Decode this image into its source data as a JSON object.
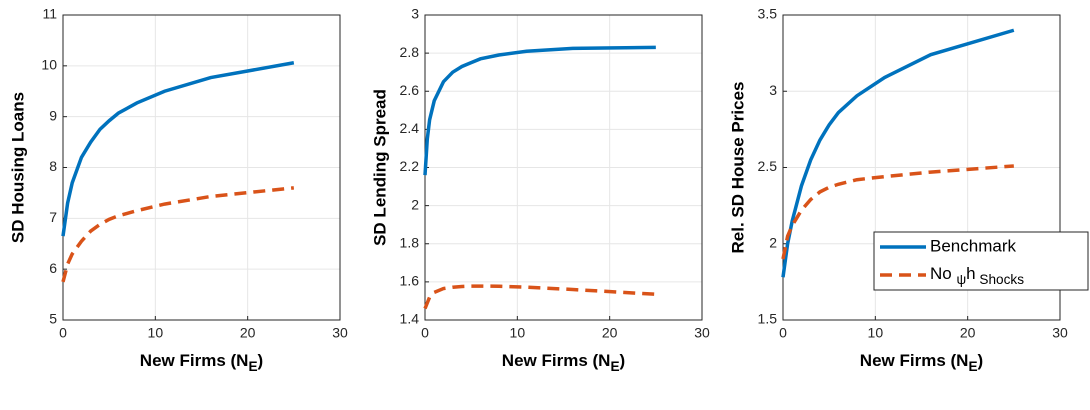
{
  "chart_data": [
    {
      "type": "line",
      "ylabel": "SD Housing Loans",
      "xlabel": [
        "New Firms (N",
        "E",
        ")"
      ],
      "x": [
        0,
        0.5,
        1,
        2,
        3,
        4,
        5,
        6,
        8,
        11,
        16,
        25
      ],
      "xlim": [
        0,
        30
      ],
      "xticks": [
        0,
        10,
        20,
        30
      ],
      "ylim": [
        5,
        11
      ],
      "yticks": [
        5,
        6,
        7,
        8,
        9,
        10,
        11
      ],
      "grid": true,
      "series": [
        {
          "name": "Benchmark",
          "color": "#0072bd",
          "dash": false,
          "values": [
            6.65,
            7.3,
            7.7,
            8.2,
            8.5,
            8.75,
            8.92,
            9.07,
            9.27,
            9.5,
            9.77,
            10.06
          ]
        },
        {
          "name": [
            "No ",
            "ψ",
            "h",
            " Shocks"
          ],
          "color": "#d95319",
          "dash": true,
          "values": [
            5.75,
            6.1,
            6.3,
            6.55,
            6.75,
            6.88,
            6.98,
            7.05,
            7.15,
            7.28,
            7.43,
            7.6
          ]
        }
      ]
    },
    {
      "type": "line",
      "ylabel": "SD Lending Spread",
      "xlabel": [
        "New Firms (N",
        "E",
        ")"
      ],
      "x": [
        0,
        0.25,
        0.5,
        1,
        2,
        3,
        4,
        5,
        6,
        8,
        11,
        16,
        25
      ],
      "xlim": [
        0,
        30
      ],
      "xticks": [
        0,
        10,
        20,
        30
      ],
      "ylim": [
        1.4,
        3
      ],
      "yticks": [
        1.4,
        1.6,
        1.8,
        2,
        2.2,
        2.4,
        2.6,
        2.8,
        3
      ],
      "grid": true,
      "series": [
        {
          "name": "Benchmark",
          "color": "#0072bd",
          "dash": false,
          "values": [
            2.16,
            2.35,
            2.45,
            2.55,
            2.65,
            2.7,
            2.73,
            2.75,
            2.77,
            2.79,
            2.81,
            2.825,
            2.83
          ]
        },
        {
          "name": [
            "No ",
            "ψ",
            "h",
            " Shocks"
          ],
          "color": "#d95319",
          "dash": true,
          "values": [
            1.46,
            1.49,
            1.52,
            1.545,
            1.565,
            1.572,
            1.576,
            1.578,
            1.578,
            1.577,
            1.572,
            1.56,
            1.535
          ]
        }
      ]
    },
    {
      "type": "line",
      "ylabel": "Rel. SD House Prices",
      "xlabel": [
        "New Firms (N",
        "E",
        ")"
      ],
      "x": [
        0,
        0.5,
        1,
        2,
        3,
        4,
        5,
        6,
        8,
        11,
        16,
        25
      ],
      "xlim": [
        0,
        30
      ],
      "xticks": [
        0,
        10,
        20,
        30
      ],
      "ylim": [
        1.5,
        3.5
      ],
      "yticks": [
        1.5,
        2,
        2.5,
        3,
        3.5
      ],
      "grid": true,
      "legend": "lower right",
      "series": [
        {
          "name": "Benchmark",
          "color": "#0072bd",
          "dash": false,
          "values": [
            1.78,
            2.0,
            2.15,
            2.38,
            2.55,
            2.68,
            2.78,
            2.86,
            2.97,
            3.09,
            3.24,
            3.4
          ]
        },
        {
          "name": [
            "No ",
            "ψ",
            "h",
            " Shocks"
          ],
          "color": "#d95319",
          "dash": true,
          "values": [
            1.9,
            2.05,
            2.12,
            2.22,
            2.29,
            2.34,
            2.37,
            2.39,
            2.42,
            2.44,
            2.47,
            2.51
          ]
        }
      ]
    }
  ]
}
